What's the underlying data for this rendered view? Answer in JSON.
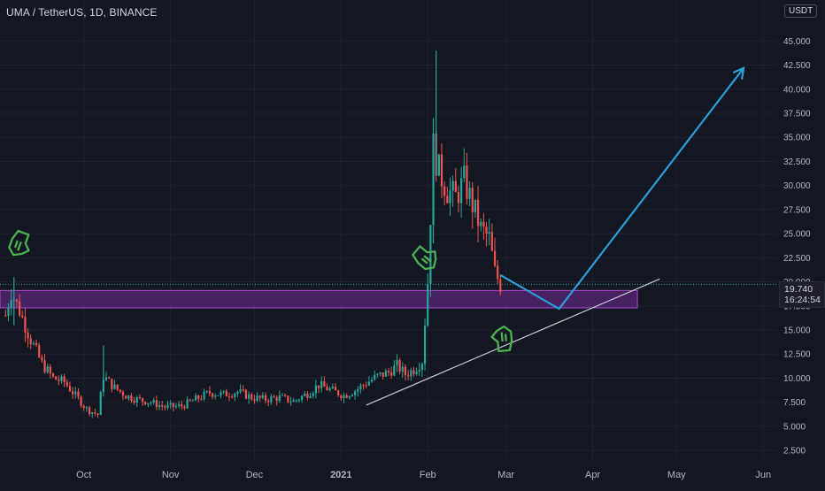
{
  "header": {
    "symbol": "UMA / TetherUS, 1D, BINANCE",
    "currency": "USDT"
  },
  "price_tag": {
    "price": "19.740",
    "countdown": "16:24:54"
  },
  "colors": {
    "background": "#131722",
    "grid": "#1e222d",
    "bull": "#26a69a",
    "bear": "#ef5350",
    "zone_fill": "#5b2577",
    "zone_border": "#b048d8",
    "projection": "#2b9ed8",
    "trendline": "#c8cad0",
    "hand_icons": "#4caf50"
  },
  "chart_data": {
    "type": "candlestick",
    "title": "UMA / TetherUS, 1D, BINANCE",
    "x_tick_labels": [
      "Oct",
      "Nov",
      "Dec",
      "2021",
      "Feb",
      "Mar",
      "Apr",
      "May",
      "Jun"
    ],
    "x_tick_dates": [
      "2020-10-01",
      "2020-11-01",
      "2020-12-01",
      "2021-01-01",
      "2021-02-01",
      "2021-03-01",
      "2021-04-01",
      "2021-05-01",
      "2021-06-01"
    ],
    "y_tick_labels": [
      "45.000",
      "42.500",
      "40.000",
      "37.500",
      "35.000",
      "32.500",
      "30.000",
      "27.500",
      "25.000",
      "22.500",
      "20.000",
      "17.500",
      "15.000",
      "12.500",
      "10.000",
      "7.500",
      "5.000",
      "2.500"
    ],
    "y_range": [
      1.5,
      46.5
    ],
    "x_range": [
      "2020-09-01",
      "2021-06-06"
    ],
    "grid": true,
    "close_points": [
      [
        "2020-09-03",
        16.5
      ],
      [
        "2020-09-05",
        19.0
      ],
      [
        "2020-09-08",
        17.0
      ],
      [
        "2020-09-12",
        14.0
      ],
      [
        "2020-09-16",
        11.5
      ],
      [
        "2020-09-20",
        10.0
      ],
      [
        "2020-09-24",
        9.6
      ],
      [
        "2020-09-28",
        8.2
      ],
      [
        "2020-10-02",
        6.8
      ],
      [
        "2020-10-06",
        6.2
      ],
      [
        "2020-10-08",
        10.2
      ],
      [
        "2020-10-12",
        9.0
      ],
      [
        "2020-10-16",
        8.2
      ],
      [
        "2020-10-20",
        7.8
      ],
      [
        "2020-10-25",
        7.5
      ],
      [
        "2020-10-30",
        7.0
      ],
      [
        "2020-11-05",
        7.1
      ],
      [
        "2020-11-10",
        7.8
      ],
      [
        "2020-11-15",
        8.5
      ],
      [
        "2020-11-20",
        8.3
      ],
      [
        "2020-11-25",
        8.6
      ],
      [
        "2020-11-30",
        8.0
      ],
      [
        "2020-12-05",
        7.8
      ],
      [
        "2020-12-10",
        8.0
      ],
      [
        "2020-12-15",
        7.6
      ],
      [
        "2020-12-20",
        8.4
      ],
      [
        "2020-12-24",
        9.3
      ],
      [
        "2020-12-28",
        8.8
      ],
      [
        "2021-01-02",
        8.2
      ],
      [
        "2021-01-06",
        8.7
      ],
      [
        "2021-01-10",
        9.5
      ],
      [
        "2021-01-14",
        10.2
      ],
      [
        "2021-01-18",
        10.6
      ],
      [
        "2021-01-21",
        11.3
      ],
      [
        "2021-01-24",
        10.4
      ],
      [
        "2021-01-27",
        10.9
      ],
      [
        "2021-01-30",
        11.8
      ],
      [
        "2021-02-01",
        20.0
      ],
      [
        "2021-02-03",
        34.0
      ],
      [
        "2021-02-05",
        31.5
      ],
      [
        "2021-02-08",
        29.5
      ],
      [
        "2021-02-11",
        28.8
      ],
      [
        "2021-02-14",
        30.5
      ],
      [
        "2021-02-17",
        28.0
      ],
      [
        "2021-02-20",
        25.5
      ],
      [
        "2021-02-23",
        24.5
      ],
      [
        "2021-02-25",
        21.0
      ],
      [
        "2021-02-27",
        19.7
      ]
    ],
    "spikes": [
      {
        "date": "2021-02-04",
        "high": 44.0,
        "low": 31.0
      },
      {
        "date": "2021-02-03",
        "high": 37.0,
        "low": 24.0
      },
      {
        "date": "2020-09-06",
        "high": 20.5,
        "low": 15.5
      },
      {
        "date": "2020-10-08",
        "high": 13.4,
        "low": 9.0
      }
    ],
    "annotations": {
      "zone": {
        "from_date": "2020-09-01",
        "to_date": "2021-04-17",
        "low": 17.3,
        "high": 19.1
      },
      "trendline": {
        "from": [
          "2021-01-10",
          7.2
        ],
        "to": [
          "2021-04-25",
          20.3
        ]
      },
      "projection_path": [
        [
          "2021-02-27",
          20.7
        ],
        [
          "2021-03-20",
          17.2
        ],
        [
          "2021-05-25",
          42.2
        ]
      ],
      "hand_icons": [
        {
          "name": "hand-pointing-down-icon",
          "date": "2020-09-08",
          "price": 24.0
        },
        {
          "name": "hand-pointing-right-icon",
          "date": "2021-01-31",
          "price": 22.5
        },
        {
          "name": "hand-pointing-up-icon",
          "date": "2021-02-28",
          "price": 14.0
        }
      ]
    }
  }
}
